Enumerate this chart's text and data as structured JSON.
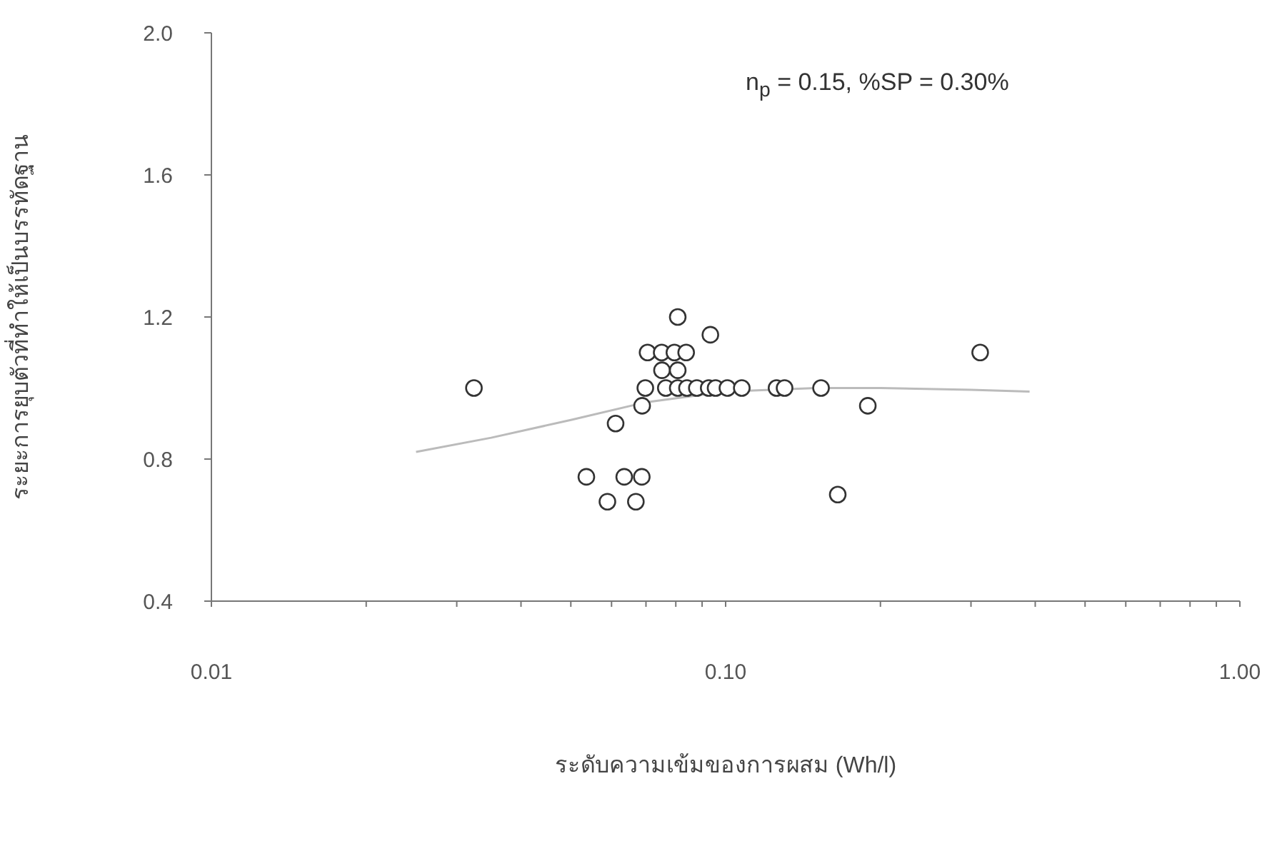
{
  "chart_data": {
    "type": "scatter",
    "xlabel": "ระดับความเข้มของการผสม (Wh/l)",
    "ylabel": "ระยะการยุบตัวที่ทำให้เป็นบรรทัดฐาน",
    "annotations": [
      "n$_{p}$ = 0.15, %SP = 0.30%"
    ],
    "log": "x",
    "xlim": [
      0.01,
      1
    ],
    "ylim": [
      0.4,
      2.0
    ],
    "xticks": [
      {
        "value": 0.01,
        "label": "0.01"
      },
      {
        "value": 0.02,
        "label": null
      },
      {
        "value": 0.03,
        "label": null
      },
      {
        "value": 0.04,
        "label": null
      },
      {
        "value": 0.05,
        "label": null
      },
      {
        "value": 0.06,
        "label": null
      },
      {
        "value": 0.07,
        "label": null
      },
      {
        "value": 0.08,
        "label": null
      },
      {
        "value": 0.09,
        "label": null
      },
      {
        "value": 0.1,
        "label": "0.10"
      },
      {
        "value": 0.2,
        "label": null
      },
      {
        "value": 0.3,
        "label": null
      },
      {
        "value": 0.4,
        "label": null
      },
      {
        "value": 0.5,
        "label": null
      },
      {
        "value": 0.6,
        "label": null
      },
      {
        "value": 0.7,
        "label": null
      },
      {
        "value": 0.8,
        "label": null
      },
      {
        "value": 0.9,
        "label": null
      },
      {
        "value": 1,
        "label": "1.00"
      }
    ],
    "yticks": [
      {
        "value": 0.4,
        "label": "0.4"
      },
      {
        "value": 0.8,
        "label": "0.8"
      },
      {
        "value": 1.2,
        "label": "1.2"
      },
      {
        "value": 1.6,
        "label": "1.6"
      },
      {
        "value": 2.0,
        "label": "2.0"
      }
    ],
    "series": [
      {
        "marker": "circle",
        "color": "#333333",
        "x": [
          0.0324,
          0.0536,
          0.0589,
          0.0669,
          0.0635,
          0.0687,
          0.0611,
          0.0688,
          0.0698,
          0.0705,
          0.0807,
          0.0934,
          0.0751,
          0.0795,
          0.0838,
          0.0752,
          0.0807,
          0.0765,
          0.0807,
          0.0841,
          0.0879,
          0.0927,
          0.0956,
          0.1008,
          0.1075,
          0.1256,
          0.1302,
          0.1533,
          0.1652,
          0.3126,
          0.189
        ],
        "values": [
          1.0,
          0.75,
          0.68,
          0.68,
          0.75,
          0.75,
          0.9,
          0.95,
          1.0,
          1.1,
          1.2,
          1.15,
          1.1,
          1.1,
          1.1,
          1.05,
          1.05,
          1.0,
          1.0,
          1.0,
          1.0,
          1.0,
          1.0,
          1.0,
          1.0,
          1.0,
          1.0,
          1.0,
          0.7,
          1.1,
          0.95
        ]
      },
      {
        "type": "line",
        "marker": "none",
        "line_style": "solid",
        "color": "#bbbbbb",
        "x": [
          0.025,
          0.035,
          0.05,
          0.07,
          0.1,
          0.15,
          0.2,
          0.3,
          0.39
        ],
        "values": [
          0.82,
          0.86,
          0.91,
          0.96,
          0.99,
          1.0,
          1.0,
          0.995,
          0.99
        ]
      }
    ]
  }
}
